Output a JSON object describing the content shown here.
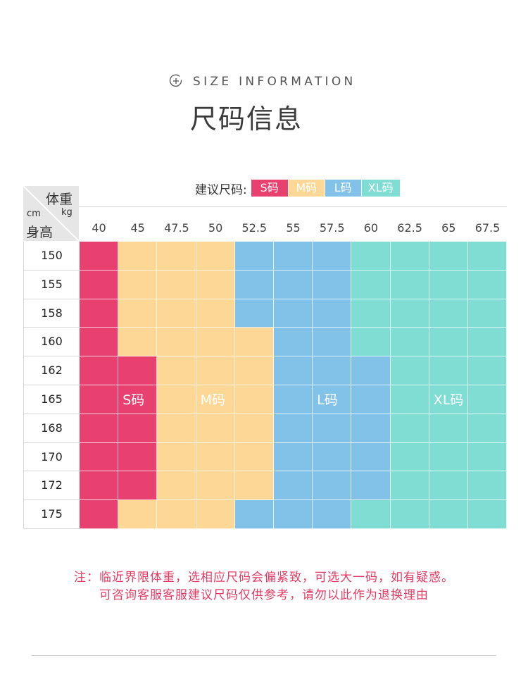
{
  "header": {
    "subtitle": "SIZE INFORMATION",
    "title": "尺码信息",
    "icon": "plus-circle-icon"
  },
  "legend": {
    "label": "建议尺码:",
    "items": [
      {
        "label": "S码",
        "color": "#e9416f"
      },
      {
        "label": "M码",
        "color": "#fdd796"
      },
      {
        "label": "L码",
        "color": "#83c2e8"
      },
      {
        "label": "XL码",
        "color": "#80ddd3"
      }
    ]
  },
  "table": {
    "corner": {
      "weight_label": "体重",
      "weight_unit": "kg",
      "height_unit": "cm",
      "height_label": "身高"
    },
    "weights": [
      "40",
      "45",
      "47.5",
      "50",
      "52.5",
      "55",
      "57.5",
      "60",
      "62.5",
      "65",
      "67.5"
    ],
    "heights": [
      "150",
      "155",
      "158",
      "160",
      "162",
      "165",
      "168",
      "170",
      "172",
      "175"
    ],
    "grid": [
      [
        "S",
        "M",
        "M",
        "M",
        "L",
        "L",
        "L",
        "XL",
        "XL",
        "XL",
        "XL"
      ],
      [
        "S",
        "M",
        "M",
        "M",
        "L",
        "L",
        "L",
        "XL",
        "XL",
        "XL",
        "XL"
      ],
      [
        "S",
        "M",
        "M",
        "M",
        "L",
        "L",
        "L",
        "XL",
        "XL",
        "XL",
        "XL"
      ],
      [
        "S",
        "M",
        "M",
        "M",
        "M",
        "L",
        "L",
        "XL",
        "XL",
        "XL",
        "XL"
      ],
      [
        "S",
        "S",
        "M",
        "M",
        "M",
        "L",
        "L",
        "L",
        "XL",
        "XL",
        "XL"
      ],
      [
        "S",
        "S",
        "M",
        "M",
        "M",
        "L",
        "L",
        "L",
        "XL",
        "XL",
        "XL"
      ],
      [
        "S",
        "S",
        "M",
        "M",
        "M",
        "L",
        "L",
        "L",
        "XL",
        "XL",
        "XL"
      ],
      [
        "S",
        "S",
        "M",
        "M",
        "M",
        "L",
        "L",
        "L",
        "XL",
        "XL",
        "XL"
      ],
      [
        "S",
        "S",
        "M",
        "M",
        "M",
        "L",
        "L",
        "L",
        "XL",
        "XL",
        "XL"
      ],
      [
        "S",
        "M",
        "M",
        "M",
        "L",
        "L",
        "L",
        "XL",
        "XL",
        "XL",
        "XL"
      ]
    ],
    "region_labels": {
      "S": "S码",
      "M": "M码",
      "L": "L码",
      "XL": "XL码"
    }
  },
  "notes": [
    "注：临近界限体重，选相应尺码会偏紧致，可选大一码，如有疑惑。",
    "可咨询客服客服建议尺码仅供参考，请勿以此作为退换理由"
  ]
}
